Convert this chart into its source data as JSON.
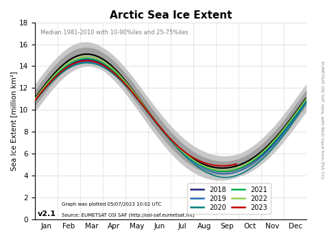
{
  "title": "Arctic Sea Ice Extent",
  "subtitle": "Median 1981-2010 with 10-90%iles and 25-75%iles",
  "ylabel": "Sea Ice Extent [million km²]",
  "ylim": [
    0,
    18
  ],
  "yticks": [
    0,
    2,
    4,
    6,
    8,
    10,
    12,
    14,
    16,
    18
  ],
  "months": [
    "Jan",
    "Feb",
    "Mar",
    "Apr",
    "May",
    "Jun",
    "Jul",
    "Aug",
    "Sep",
    "Oct",
    "Nov",
    "Dec"
  ],
  "version_text": "v2.1",
  "footer_line1": "Graph was plotted 05/07/2023 10:02 UTC",
  "footer_line2": "Source: EUMETSAT OSI SAF (http://osi-saf.eumetsat.int)",
  "right_label": "EUMETSAT OSI SAF data, with R&D input from ESA CCL",
  "median_color": "#000000",
  "band_10_90_color": "#c8c8c8",
  "band_25_75_color": "#a0a0a0",
  "background_color": "#ffffff",
  "year_colors": {
    "2018": "#1a237e",
    "2019": "#1e6eb5",
    "2020": "#007b7b",
    "2021": "#00b050",
    "2022": "#92d050",
    "2023": "#c00000"
  },
  "year_order": [
    "2018",
    "2019",
    "2020",
    "2021",
    "2022",
    "2023"
  ],
  "n_days_full": 365,
  "n_days_2023": 271
}
